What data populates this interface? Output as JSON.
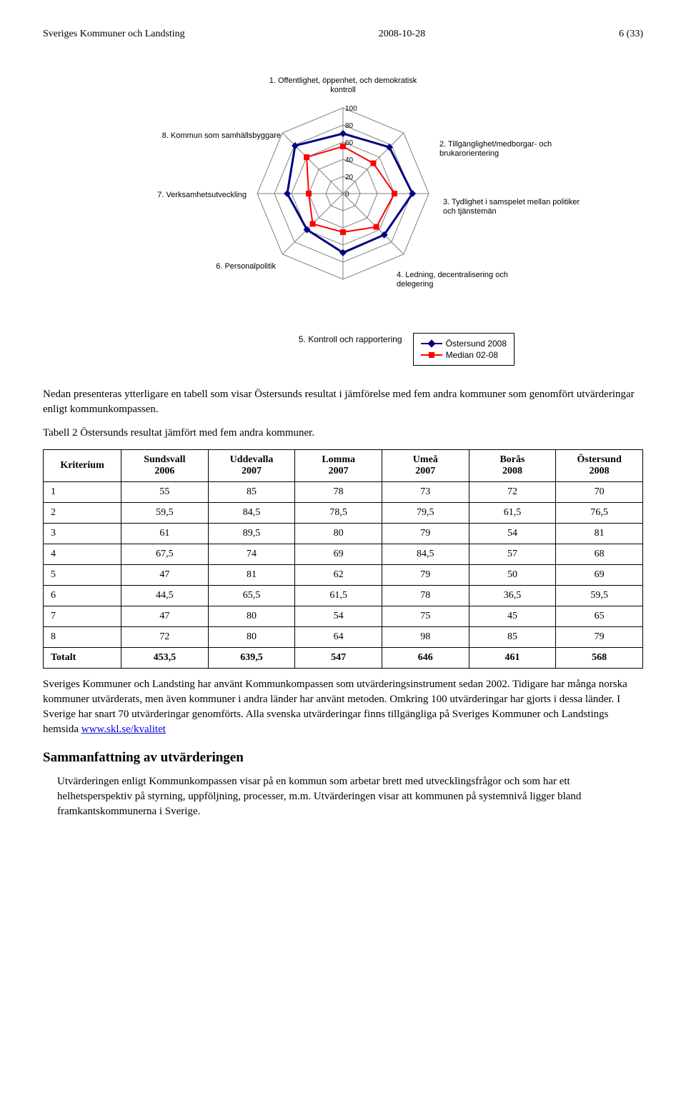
{
  "header": {
    "left": "Sveriges Kommuner och Landsting",
    "center": "2008-10-28",
    "right": "6 (33)"
  },
  "radar": {
    "axes": [
      "1. Offentlighet, öppenhet, och demokratisk kontroll",
      "2. Tillgänglighet/medborgar- och brukarorientering",
      "3. Tydlighet i samspelet mellan politiker och tjänstemän",
      "4. Ledning, decentralisering och delegering",
      "5. Kontroll och rapportering",
      "6. Personalpolitik",
      "7. Verksamhetsutveckling",
      "8. Kommun som samhällsbyggare"
    ],
    "ticks": [
      0,
      20,
      40,
      60,
      80,
      100
    ],
    "tick_label_fontsize": 10,
    "axis_label_fontsize": 11,
    "grid_color": "#808080",
    "grid_width": 1,
    "background_color": "#ffffff",
    "series": [
      {
        "name": "Östersund 2008",
        "values": [
          70,
          76.5,
          81,
          68,
          69,
          59.5,
          65,
          79
        ],
        "line_color": "#000080",
        "marker": "diamond",
        "marker_color": "#000080",
        "line_width": 3
      },
      {
        "name": "Median 02-08",
        "values": [
          55,
          50,
          60,
          55,
          45,
          50,
          40,
          60
        ],
        "line_color": "#ff0000",
        "marker": "square",
        "marker_color": "#ff0000",
        "line_width": 2
      }
    ],
    "legend": {
      "position": "bottom-right",
      "border_color": "#000000",
      "fontsize": 11
    }
  },
  "para1": "Nedan presenteras ytterligare en tabell som visar Östersunds resultat i jämförelse med fem andra kommuner som genomfört utvärderingar enligt kommunkompassen.",
  "para2": "Tabell 2 Östersunds resultat jämfört med fem andra kommuner.",
  "table": {
    "columns": [
      "Kriterium",
      "Sundsvall 2006",
      "Uddevalla 2007",
      "Lomma 2007",
      "Umeå 2007",
      "Borås 2008",
      "Östersund 2008"
    ],
    "col_widths": [
      "13%",
      "14.5%",
      "14.5%",
      "14.5%",
      "14.5%",
      "14.5%",
      "14.5%"
    ],
    "rows": [
      [
        "1",
        "55",
        "85",
        "78",
        "73",
        "72",
        "70"
      ],
      [
        "2",
        "59,5",
        "84,5",
        "78,5",
        "79,5",
        "61,5",
        "76,5"
      ],
      [
        "3",
        "61",
        "89,5",
        "80",
        "79",
        "54",
        "81"
      ],
      [
        "4",
        "67,5",
        "74",
        "69",
        "84,5",
        "57",
        "68"
      ],
      [
        "5",
        "47",
        "81",
        "62",
        "79",
        "50",
        "69"
      ],
      [
        "6",
        "44,5",
        "65,5",
        "61,5",
        "78",
        "36,5",
        "59,5"
      ],
      [
        "7",
        "47",
        "80",
        "54",
        "75",
        "45",
        "65"
      ],
      [
        "8",
        "72",
        "80",
        "64",
        "98",
        "85",
        "79"
      ],
      [
        "Totalt",
        "453,5",
        "639,5",
        "547",
        "646",
        "461",
        "568"
      ]
    ],
    "bold_last_row": true
  },
  "para3_pre": "Sveriges Kommuner och Landsting har använt Kommunkompassen som utvärderingsinstrument sedan 2002. Tidigare har många norska kommuner utvärderats, men även kommuner i andra länder har använt metoden. Omkring 100 utvärderingar har gjorts i dessa länder. I Sverige har snart 70 utvärderingar genomförts. Alla svenska utvärderingar finns tillgängliga på Sveriges Kommuner och Landstings hemsida ",
  "para3_link": "www.skl.se/kvalitet",
  "h2": "Sammanfattning av utvärderingen",
  "para4": "Utvärderingen enligt Kommunkompassen visar på en kommun som arbetar brett med utvecklingsfrågor och som har ett helhetsperspektiv på styrning, uppföljning, processer, m.m. Utvärderingen visar att kommunen på systemnivå ligger bland framkantskommunerna i Sverige."
}
